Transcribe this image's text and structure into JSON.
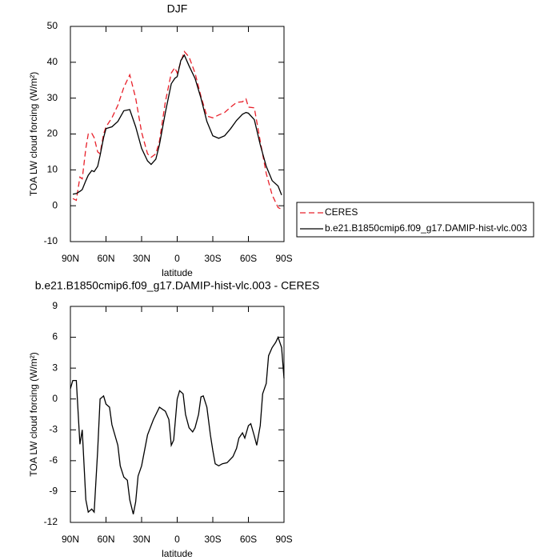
{
  "chart_data": [
    {
      "type": "line",
      "title": "DJF",
      "xlabel": "latitude",
      "ylabel": "TOA LW cloud forcing (W/m²)",
      "x": [
        88,
        85,
        82,
        80,
        77,
        75,
        72,
        70,
        67,
        65,
        62,
        60,
        55,
        50,
        45,
        40,
        35,
        30,
        25,
        22,
        18,
        15,
        10,
        5,
        2,
        0,
        -3,
        -6,
        -10,
        -15,
        -20,
        -25,
        -30,
        -35,
        -40,
        -45,
        -50,
        -55,
        -58,
        -60,
        -65,
        -70,
        -75,
        -80,
        -85,
        -88
      ],
      "series": [
        {
          "name": "CERES",
          "color": "#e8202a",
          "dash": true,
          "values": [
            2,
            1.5,
            8,
            7.5,
            16,
            20,
            20.2,
            19,
            15,
            14.5,
            20,
            22,
            24.5,
            28,
            33,
            36.5,
            30,
            20.5,
            14.5,
            13.5,
            14.5,
            18,
            29,
            37,
            38.5,
            37,
            40,
            43,
            41.5,
            37,
            30.5,
            25,
            24.5,
            25.3,
            26,
            27.5,
            28.8,
            29,
            29.8,
            27.5,
            27.3,
            18,
            9,
            3,
            -0.5,
            -1
          ]
        },
        {
          "name": "b.e21.B1850cmip6.f09_g17.DAMIP-hist-vlc.003",
          "color": "#000000",
          "dash": false,
          "values": [
            3.2,
            3.4,
            4,
            4.5,
            7,
            8.5,
            9.8,
            9.5,
            11,
            14,
            19,
            21.5,
            22,
            23.5,
            26.5,
            26.8,
            22,
            16,
            12.5,
            11.5,
            13,
            17,
            26,
            34,
            35.5,
            36,
            40.5,
            42,
            39,
            35.5,
            30,
            23.5,
            19.5,
            18.8,
            19.5,
            21.5,
            23.8,
            25.5,
            26,
            25.8,
            24,
            17,
            11,
            7,
            5.5,
            3
          ]
        }
      ],
      "xlim": [
        90,
        -90
      ],
      "xticks": [
        {
          "value": 90,
          "label": "90N"
        },
        {
          "value": 60,
          "label": "60N"
        },
        {
          "value": 30,
          "label": "30N"
        },
        0,
        {
          "value": -30,
          "label": "30S"
        },
        {
          "value": -60,
          "label": "60S"
        },
        {
          "value": -90,
          "label": "90S"
        }
      ],
      "ylim": [
        -10,
        50
      ],
      "yticks": [
        -10,
        0,
        10,
        20,
        30,
        40,
        50
      ],
      "legend": "right"
    },
    {
      "type": "line",
      "title": "b.e21.B1850cmip6.f09_g17.DAMIP-hist-vlc.003 - CERES",
      "xlabel": "latitude",
      "ylabel": "TOA LW cloud forcing (W/m²)",
      "x": [
        90,
        88,
        85,
        82,
        80,
        77,
        75,
        72,
        70,
        67,
        65,
        62,
        60,
        57,
        55,
        50,
        48,
        45,
        42,
        40,
        37,
        35,
        33,
        30,
        25,
        20,
        15,
        10,
        7,
        5,
        3,
        0,
        -2,
        -5,
        -7,
        -10,
        -13,
        -15,
        -18,
        -20,
        -22,
        -25,
        -28,
        -30,
        -32,
        -35,
        -38,
        -42,
        -47,
        -50,
        -52,
        -55,
        -57,
        -60,
        -62,
        -65,
        -67,
        -70,
        -72,
        -75,
        -77,
        -80,
        -83,
        -85,
        -88,
        -90
      ],
      "series": [
        {
          "name": "b.e21.B1850cmip6.f09_g17.DAMIP-hist-vlc.003 - CERES",
          "color": "#000000",
          "dash": false,
          "values": [
            1,
            1.8,
            1.8,
            -4.4,
            -3,
            -9.8,
            -11,
            -10.7,
            -11,
            -5,
            0,
            0.3,
            -0.5,
            -0.8,
            -2.5,
            -4.5,
            -6.5,
            -7.6,
            -7.9,
            -9.8,
            -11.2,
            -10,
            -7.5,
            -6.5,
            -3.5,
            -2,
            -0.8,
            -1.2,
            -2,
            -4.5,
            -4,
            0,
            0.8,
            0.5,
            -1.5,
            -2.8,
            -3.2,
            -2.8,
            -1.5,
            0.2,
            0.3,
            -0.8,
            -3.5,
            -5,
            -6.3,
            -6.5,
            -6.3,
            -6.2,
            -5.6,
            -4.8,
            -3.8,
            -3.3,
            -3.8,
            -2.6,
            -2.4,
            -3.6,
            -4.5,
            -2.6,
            0.5,
            1.5,
            4.2,
            5,
            5.5,
            6,
            5,
            2
          ]
        }
      ],
      "xlim": [
        90,
        -90
      ],
      "xticks": [
        {
          "value": 90,
          "label": "90N"
        },
        {
          "value": 60,
          "label": "60N"
        },
        {
          "value": 30,
          "label": "30N"
        },
        0,
        {
          "value": -30,
          "label": "30S"
        },
        {
          "value": -60,
          "label": "60S"
        },
        {
          "value": -90,
          "label": "90S"
        }
      ],
      "ylim": [
        -12,
        9
      ],
      "yticks": [
        -12,
        -9,
        -6,
        -3,
        0,
        3,
        6,
        9
      ]
    }
  ]
}
